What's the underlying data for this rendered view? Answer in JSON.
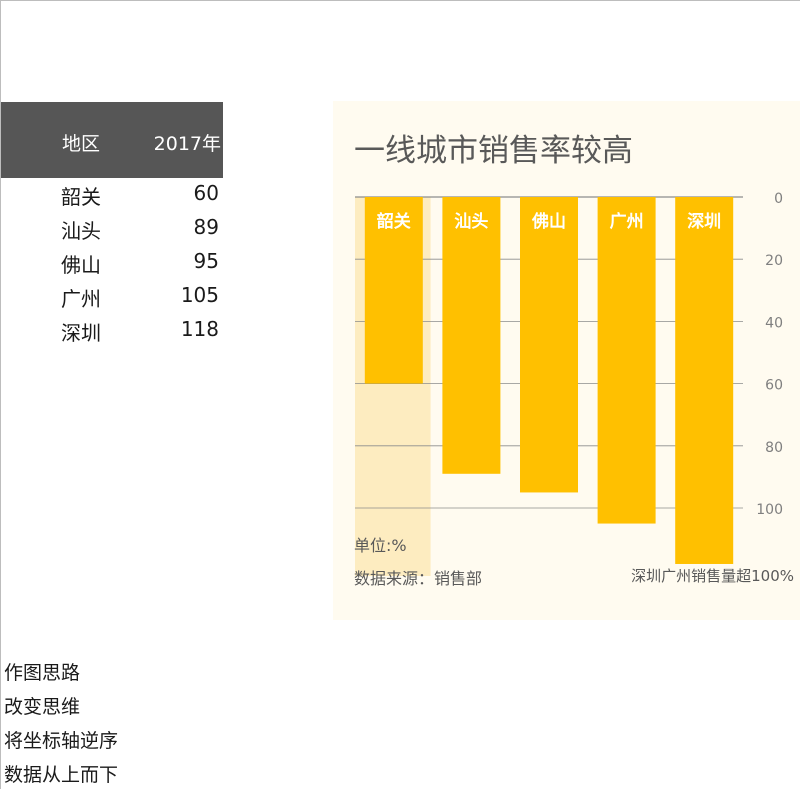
{
  "table": {
    "headers": [
      "地区",
      "2017年"
    ],
    "rows": [
      {
        "region": "韶关",
        "value": 60
      },
      {
        "region": "汕头",
        "value": 89
      },
      {
        "region": "佛山",
        "value": 95
      },
      {
        "region": "广州",
        "value": 105
      },
      {
        "region": "深圳",
        "value": 118
      }
    ]
  },
  "chart_data": {
    "type": "bar",
    "title": "一线城市销售率较高",
    "categories": [
      "韶关",
      "汕头",
      "佛山",
      "广州",
      "深圳"
    ],
    "values": [
      60,
      89,
      95,
      105,
      118
    ],
    "y_axis": {
      "reversed": true,
      "position": "right",
      "ticks": [
        0,
        20,
        40,
        60,
        80,
        100
      ],
      "range": [
        0,
        120
      ]
    },
    "grid": true,
    "unit_note": "单位:%",
    "source_note": "数据来源：销售部",
    "annotation": "深圳广州销售量超100%",
    "colors": {
      "bar": "#ffc000",
      "highlight_band": "#fdecc0",
      "background": "#fffbf0",
      "grid": "#8c8c8c",
      "title": "#595959"
    }
  },
  "notes": [
    "作图思路",
    "改变思维",
    "将坐标轴逆序",
    "数据从上而下"
  ]
}
